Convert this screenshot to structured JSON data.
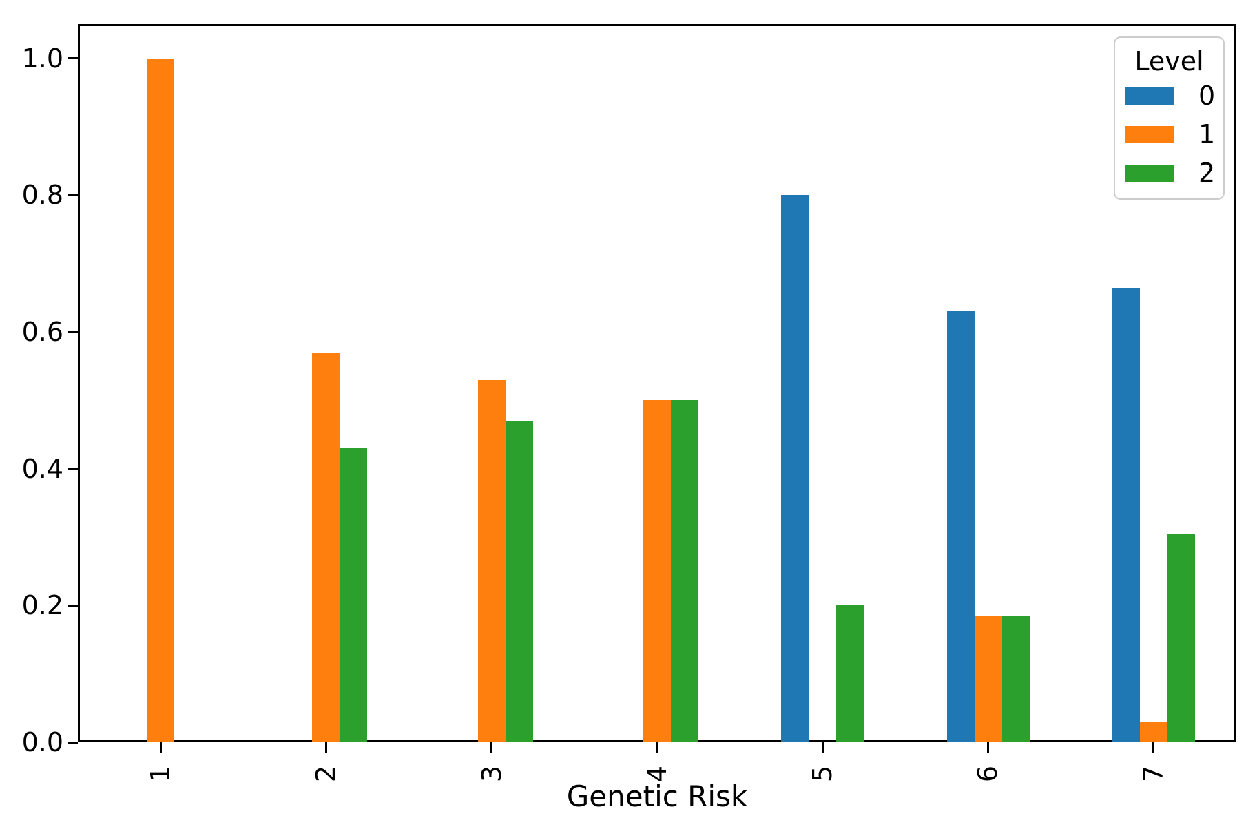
{
  "chart_data": {
    "type": "bar",
    "title": "",
    "xlabel": "Genetic Risk",
    "ylabel": "",
    "categories": [
      "1",
      "2",
      "3",
      "4",
      "5",
      "6",
      "7"
    ],
    "series": [
      {
        "name": "0",
        "color": "#1f77b4",
        "values": [
          0,
          0,
          0,
          0,
          0.8,
          0.63,
          0.663
        ]
      },
      {
        "name": "1",
        "color": "#ff7f0e",
        "values": [
          1.0,
          0.57,
          0.53,
          0.5,
          0,
          0.185,
          0.03
        ]
      },
      {
        "name": "2",
        "color": "#2ca02c",
        "values": [
          0,
          0.43,
          0.47,
          0.5,
          0.2,
          0.185,
          0.305
        ]
      }
    ],
    "ylim": [
      0,
      1.05
    ],
    "yticks": [
      "0.0",
      "0.2",
      "0.4",
      "0.6",
      "0.8",
      "1.0"
    ],
    "xtick_rotation": 90,
    "grid": false,
    "legend": {
      "title": "Level",
      "position": "upper right"
    },
    "colors": {
      "spine": "#000000",
      "background": "#ffffff",
      "text": "#000000"
    }
  }
}
